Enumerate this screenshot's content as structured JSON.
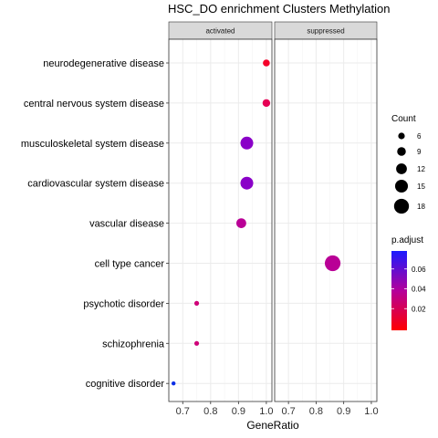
{
  "chart_data": {
    "type": "scatter",
    "title": "HSC_DO enrichment Clusters Methylation",
    "xlabel": "GeneRatio",
    "ylabel": "",
    "xlim": [
      0.65,
      1.02
    ],
    "x_ticks": [
      "0.7",
      "0.8",
      "0.9",
      "1.0"
    ],
    "grid": true,
    "facets": [
      "activated",
      "suppressed"
    ],
    "categories": [
      "neurodegenerative disease",
      "central nervous system disease",
      "musculoskeletal system disease",
      "cardiovascular system disease",
      "vascular disease",
      "cell type cancer",
      "psychotic disorder",
      "schizophrenia",
      "cognitive disorder"
    ],
    "points": [
      {
        "facet": "activated",
        "category": "neurodegenerative disease",
        "gene_ratio": 1.0,
        "count": 6,
        "p_adjust": 0.005,
        "color": "#f5002a"
      },
      {
        "facet": "activated",
        "category": "central nervous system disease",
        "gene_ratio": 1.0,
        "count": 7,
        "p_adjust": 0.015,
        "color": "#e60054"
      },
      {
        "facet": "activated",
        "category": "musculoskeletal system disease",
        "gene_ratio": 0.93,
        "count": 14,
        "p_adjust": 0.055,
        "color": "#8a00c8"
      },
      {
        "facet": "activated",
        "category": "cardiovascular system disease",
        "gene_ratio": 0.93,
        "count": 14,
        "p_adjust": 0.055,
        "color": "#8a00c8"
      },
      {
        "facet": "activated",
        "category": "vascular disease",
        "gene_ratio": 0.91,
        "count": 10,
        "p_adjust": 0.035,
        "color": "#b90096"
      },
      {
        "facet": "suppressed",
        "category": "cell type cancer",
        "gene_ratio": 0.86,
        "count": 18,
        "p_adjust": 0.035,
        "color": "#b90096"
      },
      {
        "facet": "activated",
        "category": "psychotic disorder",
        "gene_ratio": 0.75,
        "count": 3,
        "p_adjust": 0.025,
        "color": "#cf0078"
      },
      {
        "facet": "activated",
        "category": "schizophrenia",
        "gene_ratio": 0.75,
        "count": 3,
        "p_adjust": 0.025,
        "color": "#cf0078"
      },
      {
        "facet": "activated",
        "category": "cognitive disorder",
        "gene_ratio": 0.667,
        "count": 2,
        "p_adjust": 0.075,
        "color": "#0a2ee6"
      }
    ],
    "legend_position": "right",
    "size_legend": {
      "title": "Count",
      "values": [
        6,
        9,
        12,
        15,
        18
      ],
      "labels": [
        "6",
        "9",
        "12",
        "15",
        "18"
      ]
    },
    "color_legend": {
      "title": "p.adjust",
      "range": [
        0.0,
        0.08
      ],
      "ticks": [
        0.06,
        0.04,
        0.02
      ],
      "labels": [
        "0.06",
        "0.04",
        "0.02"
      ],
      "low_color": "#ff0000",
      "high_color": "#1a1aff"
    }
  }
}
